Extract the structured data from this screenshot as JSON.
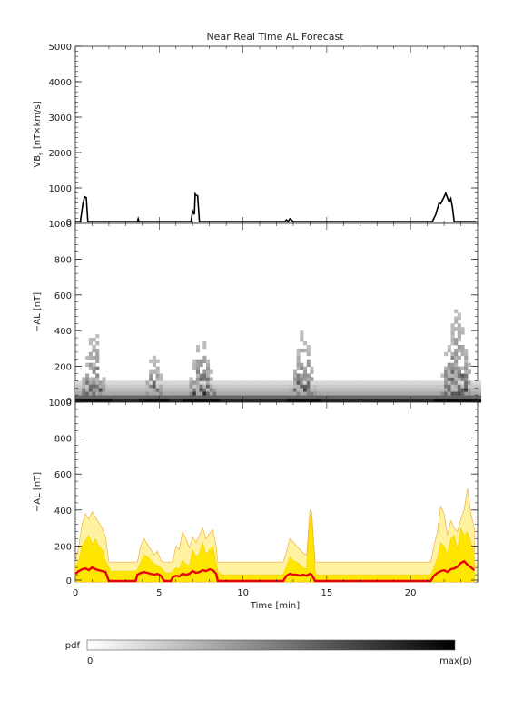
{
  "title": "Near Real Time AL Forecast",
  "colorbar": {
    "label": "pdf",
    "min_label": "0",
    "max_label": "max(p)"
  },
  "chart_data": [
    {
      "type": "line",
      "ylabel_main": "VB",
      "ylabel_sub": "s",
      "ylabel_rest": " [nT×km/s]",
      "xlim": [
        0,
        24
      ],
      "ylim": [
        0,
        5000
      ],
      "yticks": [
        "0",
        "1000",
        "2000",
        "3000",
        "4000",
        "5000"
      ],
      "series": [
        {
          "x": [
            0,
            0.3,
            0.45,
            0.55,
            0.65,
            0.75,
            3.7,
            3.75,
            3.8,
            6.9,
            7.0,
            7.1,
            7.15,
            7.2,
            7.3,
            7.4,
            7.45,
            12.5,
            12.6,
            12.7,
            12.8,
            12.9,
            13.0,
            21.3,
            21.5,
            21.7,
            21.8,
            22.0,
            22.1,
            22.3,
            22.4,
            22.5,
            22.6,
            23.9
          ],
          "y": [
            0,
            0,
            500,
            700,
            680,
            0,
            0,
            80,
            0,
            0,
            300,
            200,
            780,
            750,
            720,
            0,
            0,
            0,
            50,
            0,
            80,
            40,
            0,
            0,
            200,
            520,
            500,
            700,
            800,
            550,
            650,
            400,
            0,
            0
          ]
        }
      ]
    },
    {
      "type": "heatmap",
      "ylabel": "−AL [nT]",
      "xlim": [
        0,
        24
      ],
      "ylim": [
        0,
        1000
      ],
      "yticks": [
        "0",
        "200",
        "400",
        "600",
        "800",
        "1000"
      ],
      "background_band_max": 120,
      "event_intervals": [
        [
          0,
          2
        ],
        [
          3.7,
          5.5
        ],
        [
          6.3,
          8.6
        ],
        [
          12.5,
          14.5
        ],
        [
          21.3,
          24
        ]
      ],
      "event_peaks": [
        400,
        250,
        350,
        400,
        520
      ]
    },
    {
      "type": "area",
      "ylabel": "−AL [nT]",
      "xlabel": "Time [min]",
      "xlim": [
        0,
        24
      ],
      "ylim": [
        0,
        1000
      ],
      "yticks": [
        "0",
        "200",
        "400",
        "600",
        "800",
        "1000"
      ],
      "xticks": [
        "0",
        "5",
        "10",
        "15",
        "20"
      ],
      "band_value": 110,
      "x": [
        0,
        0.2,
        0.4,
        0.6,
        0.8,
        1.0,
        1.2,
        1.4,
        1.6,
        1.8,
        2.0,
        2.1,
        3.6,
        3.7,
        3.9,
        4.1,
        4.3,
        4.5,
        4.7,
        4.9,
        5.1,
        5.3,
        5.4,
        5.7,
        5.8,
        6.0,
        6.2,
        6.4,
        6.6,
        6.8,
        7.0,
        7.2,
        7.4,
        7.6,
        7.8,
        8.0,
        8.2,
        8.4,
        8.5,
        8.6,
        8.7,
        12.4,
        12.6,
        12.8,
        13.0,
        13.2,
        13.4,
        13.6,
        13.8,
        14.0,
        14.1,
        14.3,
        14.4,
        14.5,
        21.2,
        21.4,
        21.6,
        21.8,
        22.0,
        22.2,
        22.4,
        22.6,
        22.8,
        23.0,
        23.2,
        23.4,
        23.6,
        23.8
      ],
      "p_upper": [
        110,
        200,
        320,
        380,
        350,
        390,
        360,
        330,
        300,
        250,
        110,
        110,
        110,
        110,
        200,
        240,
        210,
        180,
        150,
        170,
        120,
        110,
        110,
        110,
        110,
        200,
        180,
        280,
        240,
        190,
        250,
        220,
        260,
        300,
        240,
        270,
        290,
        200,
        110,
        110,
        110,
        110,
        170,
        240,
        220,
        200,
        180,
        160,
        150,
        400,
        390,
        110,
        110,
        110,
        110,
        200,
        280,
        420,
        380,
        260,
        340,
        300,
        280,
        350,
        400,
        520,
        380,
        300
      ],
      "p_mid": [
        80,
        120,
        200,
        230,
        260,
        210,
        240,
        200,
        180,
        120,
        80,
        60,
        60,
        70,
        110,
        150,
        140,
        120,
        100,
        90,
        80,
        60,
        50,
        50,
        60,
        80,
        70,
        120,
        100,
        90,
        180,
        140,
        160,
        220,
        150,
        180,
        200,
        110,
        60,
        50,
        40,
        40,
        90,
        140,
        120,
        110,
        100,
        80,
        70,
        380,
        360,
        60,
        40,
        40,
        40,
        80,
        130,
        220,
        200,
        160,
        240,
        260,
        180,
        300,
        260,
        280,
        220,
        160
      ],
      "median": [
        40,
        55,
        65,
        70,
        60,
        75,
        65,
        60,
        55,
        50,
        0,
        0,
        0,
        35,
        45,
        50,
        45,
        40,
        35,
        40,
        30,
        0,
        0,
        0,
        20,
        30,
        25,
        40,
        35,
        40,
        55,
        45,
        50,
        60,
        55,
        65,
        60,
        40,
        0,
        0,
        0,
        0,
        30,
        40,
        35,
        35,
        30,
        35,
        30,
        40,
        35,
        0,
        0,
        0,
        0,
        30,
        45,
        55,
        60,
        50,
        65,
        70,
        80,
        100,
        110,
        90,
        75,
        60
      ]
    }
  ]
}
